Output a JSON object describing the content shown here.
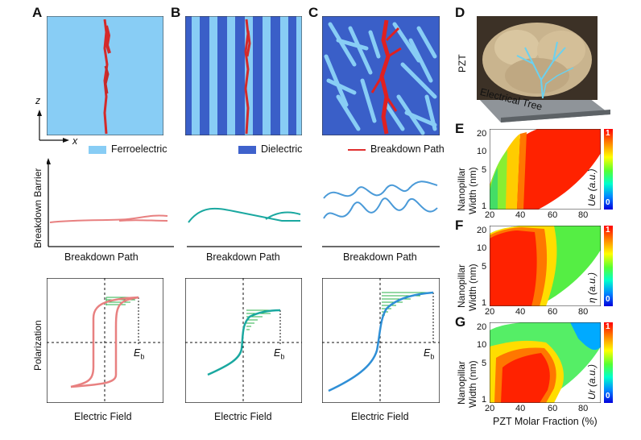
{
  "panels": {
    "A": {
      "letter": "A",
      "legend": "Ferroelectric",
      "axis_z": "z",
      "axis_x": "x"
    },
    "B": {
      "letter": "B",
      "legend": "Dielectric"
    },
    "C": {
      "letter": "C",
      "legend": "Breakdown Path"
    },
    "D": {
      "letter": "D",
      "label_pzt": "PZT",
      "label_tree": "Electrical Tree"
    },
    "E": {
      "letter": "E",
      "cbar_label": "Ue (a.u.)"
    },
    "F": {
      "letter": "F",
      "cbar_label": "η (a.u.)"
    },
    "G": {
      "letter": "G",
      "cbar_label": "Ur (a.u.)"
    }
  },
  "row2": {
    "ylabel": "Breakdown Barrier",
    "xlabel": "Breakdown Path"
  },
  "row3": {
    "ylabel": "Polarization",
    "xlabel": "Electric Field",
    "eb": "E",
    "eb_sub": "b"
  },
  "maps": {
    "ylabel_line1": "Nanopillar",
    "ylabel_line2": "Width (nm)",
    "xlabel": "PZT Molar Fraction (%)",
    "yticks": [
      "20",
      "10",
      "5",
      "1"
    ],
    "xticks": [
      "20",
      "40",
      "60",
      "80"
    ],
    "cbar_top": "1",
    "cbar_bottom": "0"
  },
  "colors": {
    "ferro": "#88cdf5",
    "dielectric": "#3f62cc",
    "path": "#e03030",
    "pink": "#e88080",
    "teal": "#1aa8a0",
    "blue": "#4a9ad8"
  }
}
